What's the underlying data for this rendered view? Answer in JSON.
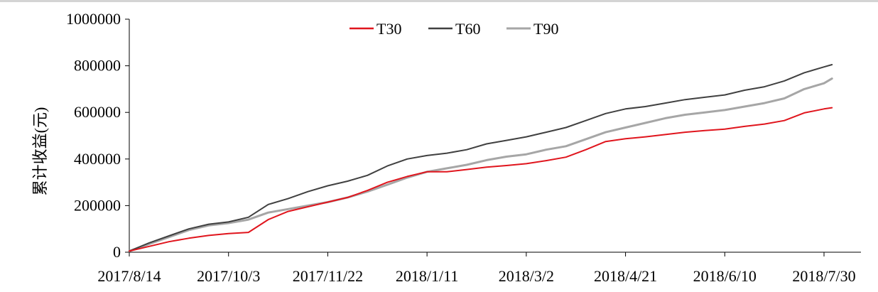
{
  "chart_data": {
    "type": "line",
    "title": "",
    "xlabel": "",
    "ylabel": "累计收益(元)",
    "ylim": [
      0,
      1000000
    ],
    "y_ticks": [
      "0",
      "200000",
      "400000",
      "600000",
      "800000",
      "1000000"
    ],
    "x_ticks": [
      "2017/8/14",
      "2017/10/3",
      "2017/11/22",
      "2018/1/11",
      "2018/3/2",
      "2018/4/21",
      "2018/6/10",
      "2018/7/30"
    ],
    "legend_position": "top-center",
    "grid": false,
    "x": [
      "2017/8/14",
      "2017/8/24",
      "2017/9/3",
      "2017/9/13",
      "2017/9/23",
      "2017/10/3",
      "2017/10/13",
      "2017/10/23",
      "2017/11/2",
      "2017/11/12",
      "2017/11/22",
      "2017/12/2",
      "2017/12/12",
      "2017/12/22",
      "2018/1/1",
      "2018/1/11",
      "2018/1/21",
      "2018/1/31",
      "2018/2/10",
      "2018/2/20",
      "2018/3/2",
      "2018/3/12",
      "2018/3/22",
      "2018/4/1",
      "2018/4/11",
      "2018/4/21",
      "2018/5/1",
      "2018/5/11",
      "2018/5/21",
      "2018/5/31",
      "2018/6/10",
      "2018/6/20",
      "2018/6/30",
      "2018/7/10",
      "2018/7/20",
      "2018/7/30",
      "2018/8/3"
    ],
    "series": [
      {
        "name": "T30",
        "color": "#e0151d",
        "values": [
          5000,
          25000,
          45000,
          60000,
          72000,
          80000,
          85000,
          140000,
          175000,
          195000,
          215000,
          235000,
          265000,
          300000,
          325000,
          345000,
          345000,
          355000,
          365000,
          372000,
          380000,
          393000,
          408000,
          440000,
          475000,
          487000,
          495000,
          505000,
          515000,
          522000,
          528000,
          540000,
          550000,
          565000,
          598000,
          615000,
          620000
        ]
      },
      {
        "name": "T60",
        "color": "#404040",
        "values": [
          5000,
          40000,
          70000,
          100000,
          120000,
          130000,
          150000,
          205000,
          230000,
          260000,
          285000,
          305000,
          330000,
          370000,
          400000,
          415000,
          425000,
          440000,
          465000,
          480000,
          495000,
          515000,
          535000,
          565000,
          595000,
          615000,
          625000,
          640000,
          655000,
          665000,
          675000,
          695000,
          710000,
          735000,
          770000,
          795000,
          805000
        ]
      },
      {
        "name": "T90",
        "color": "#a6a6a6",
        "values": [
          5000,
          35000,
          65000,
          95000,
          115000,
          125000,
          140000,
          170000,
          185000,
          200000,
          215000,
          235000,
          260000,
          290000,
          320000,
          345000,
          360000,
          375000,
          395000,
          410000,
          420000,
          440000,
          455000,
          485000,
          515000,
          535000,
          555000,
          575000,
          590000,
          600000,
          610000,
          625000,
          640000,
          660000,
          700000,
          725000,
          745000
        ]
      }
    ]
  }
}
